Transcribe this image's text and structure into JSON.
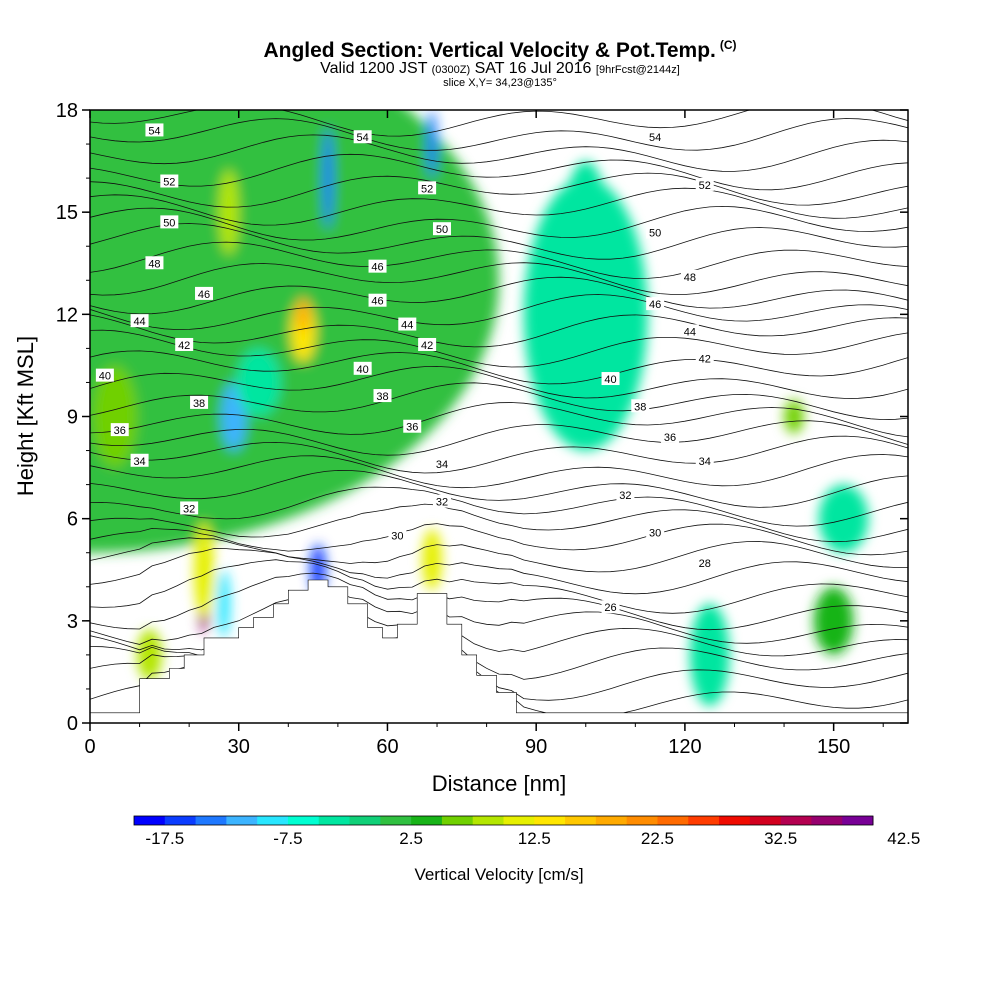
{
  "header": {
    "title": "Angled Section: Vertical Velocity & Pot.Temp.",
    "title_suffix": "(C)",
    "subtitle_a": "Valid 1200 JST",
    "subtitle_b": "(0300Z)",
    "subtitle_c": "SAT 16 Jul 2016",
    "subtitle_d": "[9hrFcst@2144z]",
    "slice": "slice X,Y= 34,23@135°"
  },
  "chart_data": {
    "type": "heatmap",
    "xlabel": "Distance [nm]",
    "ylabel": "Height [Kft MSL]",
    "xlim": [
      0,
      165
    ],
    "ylim": [
      0,
      18
    ],
    "xticks": [
      "0",
      "30",
      "60",
      "90",
      "120",
      "150"
    ],
    "yticks": [
      "0",
      "3",
      "6",
      "9",
      "12",
      "15",
      "18"
    ],
    "colorbar": {
      "label": "Vertical Velocity [cm/s]",
      "ticks": [
        "-17.5",
        "-7.5",
        "2.5",
        "12.5",
        "22.5",
        "32.5",
        "42.5"
      ],
      "colors": [
        "#0000ff",
        "#0a3cff",
        "#1e78ff",
        "#3cb4ff",
        "#28e6ff",
        "#00ffd2",
        "#00e6a0",
        "#10d078",
        "#30c040",
        "#18b418",
        "#70d000",
        "#b4e600",
        "#e6f000",
        "#ffe600",
        "#ffc800",
        "#ffaa00",
        "#ff8c00",
        "#ff6a00",
        "#ff3c00",
        "#f00a00",
        "#d2001e",
        "#b40050",
        "#96006e",
        "#780096"
      ]
    },
    "terrain": [
      [
        0,
        0.3
      ],
      [
        10,
        0.3
      ],
      [
        10,
        1.3
      ],
      [
        16,
        1.3
      ],
      [
        16,
        1.6
      ],
      [
        19,
        1.6
      ],
      [
        19,
        2.0
      ],
      [
        23,
        2.0
      ],
      [
        23,
        2.5
      ],
      [
        30,
        2.5
      ],
      [
        30,
        2.8
      ],
      [
        33,
        2.8
      ],
      [
        33,
        3.1
      ],
      [
        37,
        3.1
      ],
      [
        37,
        3.5
      ],
      [
        40,
        3.5
      ],
      [
        40,
        3.9
      ],
      [
        44,
        3.9
      ],
      [
        44,
        4.2
      ],
      [
        48,
        4.2
      ],
      [
        48,
        4.0
      ],
      [
        52,
        4.0
      ],
      [
        52,
        3.5
      ],
      [
        56,
        3.5
      ],
      [
        56,
        2.8
      ],
      [
        59,
        2.8
      ],
      [
        59,
        2.5
      ],
      [
        62,
        2.5
      ],
      [
        62,
        2.9
      ],
      [
        66,
        2.9
      ],
      [
        66,
        3.8
      ],
      [
        72,
        3.8
      ],
      [
        72,
        2.9
      ],
      [
        75,
        2.9
      ],
      [
        75,
        2.0
      ],
      [
        78,
        2.0
      ],
      [
        78,
        1.4
      ],
      [
        82,
        1.4
      ],
      [
        82,
        0.9
      ],
      [
        86,
        0.9
      ],
      [
        86,
        0.3
      ],
      [
        165,
        0.3
      ]
    ],
    "wblobs": [
      {
        "x": 0,
        "y": 13,
        "w": 165,
        "h": 16,
        "v": 1
      },
      {
        "x": 5,
        "y": 9,
        "w": 9,
        "h": 3,
        "v": 5
      },
      {
        "x": 12,
        "y": 2,
        "w": 5,
        "h": 1.5,
        "v": 8
      },
      {
        "x": 28,
        "y": 15,
        "w": 4,
        "h": 2.5,
        "v": 8
      },
      {
        "x": 43,
        "y": 11.5,
        "w": 5,
        "h": 1.8,
        "v": 14
      },
      {
        "x": 43,
        "y": 12,
        "w": 2.5,
        "h": 1,
        "v": 18
      },
      {
        "x": 23,
        "y": 3.8,
        "w": 2.5,
        "h": 2.3,
        "v": 35
      },
      {
        "x": 23,
        "y": 3.8,
        "w": 1.3,
        "h": 1.5,
        "v": 48
      },
      {
        "x": 23,
        "y": 4.5,
        "w": 4,
        "h": 2.8,
        "v": 12
      },
      {
        "x": 69,
        "y": 4.8,
        "w": 2.5,
        "h": 1.3,
        "v": 22
      },
      {
        "x": 69,
        "y": 4.8,
        "w": 4,
        "h": 1.8,
        "v": 10
      },
      {
        "x": 27,
        "y": 3.5,
        "w": 2.5,
        "h": 2,
        "v": -9
      },
      {
        "x": 29,
        "y": 9,
        "w": 5,
        "h": 2,
        "v": -12
      },
      {
        "x": 46,
        "y": 4.5,
        "w": 3,
        "h": 1.5,
        "v": -17
      },
      {
        "x": 48,
        "y": 16,
        "w": 2,
        "h": 3,
        "v": -15
      },
      {
        "x": 69,
        "y": 17,
        "w": 2,
        "h": 2,
        "v": -14
      },
      {
        "x": 34,
        "y": 10,
        "w": 9,
        "h": 2,
        "v": -5
      },
      {
        "x": 100,
        "y": 12,
        "w": 25,
        "h": 8,
        "v": -3
      },
      {
        "x": 125,
        "y": 2,
        "w": 8,
        "h": 3,
        "v": -4
      },
      {
        "x": 152,
        "y": 6,
        "w": 10,
        "h": 2,
        "v": -4
      },
      {
        "x": 100,
        "y": 15,
        "w": 8,
        "h": 3,
        "v": -5
      },
      {
        "x": 142,
        "y": 9,
        "w": 4,
        "h": 1,
        "v": 6
      },
      {
        "x": 150,
        "y": 3,
        "w": 8,
        "h": 2,
        "v": 4
      }
    ],
    "pot_temp_labels": [
      {
        "x": 13,
        "y": 17.4,
        "t": "54"
      },
      {
        "x": 55,
        "y": 17.2,
        "t": "54"
      },
      {
        "x": 114,
        "y": 17.2,
        "t": "54"
      },
      {
        "x": 16,
        "y": 15.9,
        "t": "52"
      },
      {
        "x": 68,
        "y": 15.7,
        "t": "52"
      },
      {
        "x": 124,
        "y": 15.8,
        "t": "52"
      },
      {
        "x": 16,
        "y": 14.7,
        "t": "50"
      },
      {
        "x": 71,
        "y": 14.5,
        "t": "50"
      },
      {
        "x": 114,
        "y": 14.4,
        "t": "50"
      },
      {
        "x": 13,
        "y": 13.5,
        "t": "48"
      },
      {
        "x": 58,
        "y": 13.4,
        "t": "46"
      },
      {
        "x": 121,
        "y": 13.1,
        "t": "48"
      },
      {
        "x": 23,
        "y": 12.6,
        "t": "46"
      },
      {
        "x": 58,
        "y": 12.4,
        "t": "46"
      },
      {
        "x": 114,
        "y": 12.3,
        "t": "46"
      },
      {
        "x": 10,
        "y": 11.8,
        "t": "44"
      },
      {
        "x": 64,
        "y": 11.7,
        "t": "44"
      },
      {
        "x": 121,
        "y": 11.5,
        "t": "44"
      },
      {
        "x": 19,
        "y": 11.1,
        "t": "42"
      },
      {
        "x": 68,
        "y": 11.1,
        "t": "42"
      },
      {
        "x": 124,
        "y": 10.7,
        "t": "42"
      },
      {
        "x": 3,
        "y": 10.2,
        "t": "40"
      },
      {
        "x": 55,
        "y": 10.4,
        "t": "40"
      },
      {
        "x": 105,
        "y": 10.1,
        "t": "40"
      },
      {
        "x": 22,
        "y": 9.4,
        "t": "38"
      },
      {
        "x": 59,
        "y": 9.6,
        "t": "38"
      },
      {
        "x": 111,
        "y": 9.3,
        "t": "38"
      },
      {
        "x": 6,
        "y": 8.6,
        "t": "36"
      },
      {
        "x": 65,
        "y": 8.7,
        "t": "36"
      },
      {
        "x": 117,
        "y": 8.4,
        "t": "36"
      },
      {
        "x": 10,
        "y": 7.7,
        "t": "34"
      },
      {
        "x": 71,
        "y": 7.6,
        "t": "34"
      },
      {
        "x": 124,
        "y": 7.7,
        "t": "34"
      },
      {
        "x": 20,
        "y": 6.3,
        "t": "32"
      },
      {
        "x": 71,
        "y": 6.5,
        "t": "32"
      },
      {
        "x": 108,
        "y": 6.7,
        "t": "32"
      },
      {
        "x": 62,
        "y": 5.5,
        "t": "30"
      },
      {
        "x": 114,
        "y": 5.6,
        "t": "30"
      },
      {
        "x": 124,
        "y": 4.7,
        "t": "28"
      },
      {
        "x": 105,
        "y": 3.4,
        "t": "26"
      }
    ]
  }
}
